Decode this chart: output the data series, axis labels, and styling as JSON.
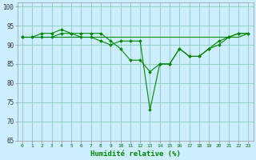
{
  "xlabel": "Humidité relative (%)",
  "bg_color": "#cceeff",
  "grid_color": "#aaddcc",
  "line_color": "#008800",
  "xlim": [
    -0.5,
    23.5
  ],
  "ylim": [
    65,
    101
  ],
  "yticks": [
    65,
    70,
    75,
    80,
    85,
    90,
    95,
    100
  ],
  "xticks": [
    0,
    1,
    2,
    3,
    4,
    5,
    6,
    7,
    8,
    9,
    10,
    11,
    12,
    13,
    14,
    15,
    16,
    17,
    18,
    19,
    20,
    21,
    22,
    23
  ],
  "series": [
    [
      92,
      92,
      93,
      93,
      94,
      93,
      93,
      93,
      93,
      91,
      89,
      86,
      86,
      83,
      85,
      85,
      89,
      87,
      87,
      89,
      91,
      92,
      93,
      93
    ],
    [
      92,
      92,
      92,
      92,
      93,
      93,
      92,
      92,
      91,
      90,
      91,
      91,
      91,
      73,
      85,
      85,
      89,
      87,
      87,
      89,
      90,
      92,
      93,
      93
    ],
    [
      92,
      92,
      92,
      92,
      92,
      92,
      92,
      92,
      92,
      92,
      92,
      92,
      92,
      92,
      92,
      92,
      92,
      92,
      92,
      92,
      92,
      92,
      92,
      93
    ]
  ],
  "series_markers": [
    true,
    true,
    false
  ]
}
